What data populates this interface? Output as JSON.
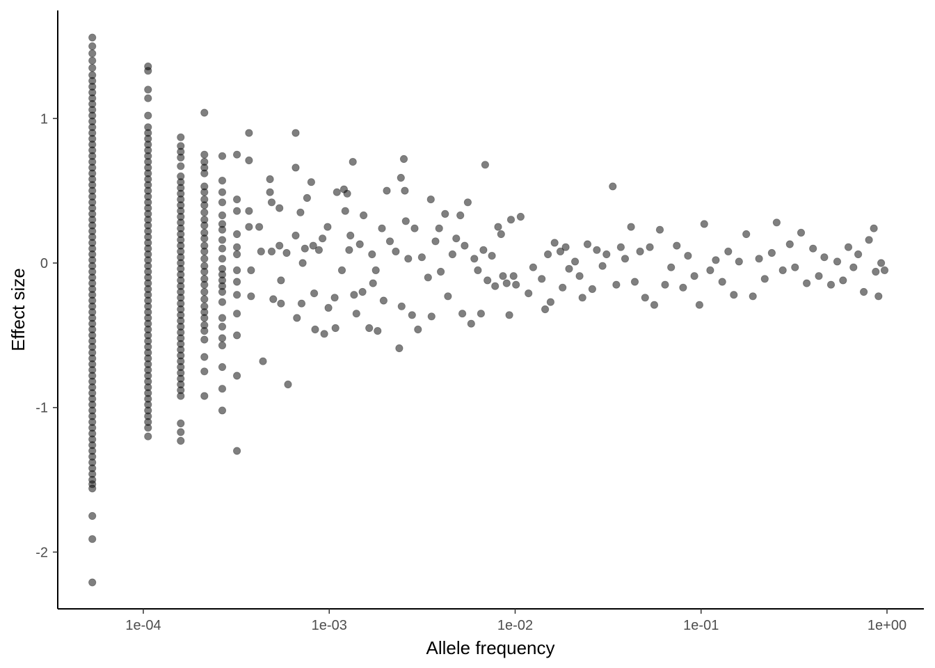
{
  "chart_data": {
    "type": "scatter",
    "title": "",
    "xlabel": "Allele frequency",
    "ylabel": "Effect size",
    "x_scale": "log10",
    "xlim": [
      3.8e-05,
      1.2
    ],
    "ylim": [
      -2.4,
      1.7
    ],
    "x_ticks": [
      {
        "value": 0.0001,
        "label": "1e-04"
      },
      {
        "value": 0.001,
        "label": "1e-03"
      },
      {
        "value": 0.01,
        "label": "1e-02"
      },
      {
        "value": 0.1,
        "label": "1e-01"
      },
      {
        "value": 1,
        "label": "1e+00"
      }
    ],
    "y_ticks": [
      {
        "value": 1,
        "label": "1"
      },
      {
        "value": 0,
        "label": "0"
      },
      {
        "value": -1,
        "label": "-1"
      },
      {
        "value": -2,
        "label": "-2"
      }
    ],
    "grid": false,
    "legend": "none",
    "point_color": "#000000",
    "point_opacity": 0.5,
    "columns": [
      {
        "x": 5.32e-05,
        "y": [
          1.56,
          1.5,
          1.45,
          1.4,
          1.35,
          1.3,
          1.26,
          1.22,
          1.18,
          1.14,
          1.1,
          1.06,
          1.02,
          0.98,
          0.94,
          0.9,
          0.86,
          0.82,
          0.78,
          0.74,
          0.7,
          0.66,
          0.62,
          0.58,
          0.54,
          0.5,
          0.46,
          0.42,
          0.38,
          0.34,
          0.3,
          0.26,
          0.22,
          0.18,
          0.14,
          0.1,
          0.06,
          0.02,
          -0.02,
          -0.06,
          -0.1,
          -0.14,
          -0.18,
          -0.22,
          -0.26,
          -0.3,
          -0.34,
          -0.38,
          -0.42,
          -0.46,
          -0.5,
          -0.54,
          -0.58,
          -0.62,
          -0.66,
          -0.7,
          -0.74,
          -0.78,
          -0.82,
          -0.86,
          -0.9,
          -0.94,
          -0.98,
          -1.02,
          -1.06,
          -1.1,
          -1.14,
          -1.18,
          -1.22,
          -1.26,
          -1.3,
          -1.34,
          -1.38,
          -1.42,
          -1.46,
          -1.5,
          -1.53,
          -1.56,
          -1.75,
          -1.91,
          -2.21
        ]
      },
      {
        "x": 0.000106,
        "y": [
          1.36,
          1.33,
          1.2,
          1.14,
          1.02,
          0.94,
          0.9,
          0.86,
          0.82,
          0.78,
          0.74,
          0.7,
          0.66,
          0.62,
          0.58,
          0.54,
          0.5,
          0.46,
          0.42,
          0.38,
          0.34,
          0.3,
          0.26,
          0.22,
          0.18,
          0.14,
          0.1,
          0.06,
          0.02,
          -0.02,
          -0.06,
          -0.1,
          -0.14,
          -0.18,
          -0.22,
          -0.26,
          -0.3,
          -0.34,
          -0.38,
          -0.42,
          -0.46,
          -0.5,
          -0.54,
          -0.58,
          -0.62,
          -0.66,
          -0.7,
          -0.74,
          -0.78,
          -0.82,
          -0.86,
          -0.9,
          -0.94,
          -0.98,
          -1.02,
          -1.06,
          -1.1,
          -1.14,
          -1.2
        ]
      },
      {
        "x": 0.000159,
        "y": [
          0.87,
          0.81,
          0.77,
          0.73,
          0.67,
          0.6,
          0.56,
          0.52,
          0.48,
          0.44,
          0.4,
          0.36,
          0.32,
          0.28,
          0.24,
          0.2,
          0.16,
          0.12,
          0.08,
          0.04,
          0.0,
          -0.04,
          -0.08,
          -0.12,
          -0.16,
          -0.2,
          -0.24,
          -0.28,
          -0.32,
          -0.36,
          -0.4,
          -0.44,
          -0.48,
          -0.52,
          -0.56,
          -0.6,
          -0.64,
          -0.68,
          -0.72,
          -0.76,
          -0.8,
          -0.84,
          -0.88,
          -0.92,
          -1.11,
          -1.17,
          -1.23
        ]
      },
      {
        "x": 0.000213,
        "y": [
          1.04,
          0.75,
          0.7,
          0.66,
          0.62,
          0.53,
          0.49,
          0.44,
          0.4,
          0.35,
          0.3,
          0.26,
          0.21,
          0.17,
          0.12,
          0.08,
          0.03,
          -0.02,
          -0.06,
          -0.11,
          -0.15,
          -0.2,
          -0.25,
          -0.3,
          -0.34,
          -0.38,
          -0.43,
          -0.47,
          -0.53,
          -0.65,
          -0.75,
          -0.92
        ]
      },
      {
        "x": 0.000266,
        "y": [
          0.74,
          0.57,
          0.49,
          0.42,
          0.33,
          0.27,
          0.23,
          0.16,
          0.1,
          0.03,
          -0.04,
          -0.08,
          -0.12,
          -0.16,
          -0.2,
          -0.27,
          -0.38,
          -0.44,
          -0.52,
          -0.57,
          -0.72,
          -0.87,
          -1.02
        ]
      },
      {
        "x": 0.000319,
        "y": [
          0.75,
          0.44,
          0.36,
          0.2,
          0.11,
          0.06,
          -0.05,
          -0.13,
          -0.22,
          -0.35,
          -0.5,
          -0.78,
          -1.3
        ]
      }
    ],
    "points": [
      {
        "x": 0.00037,
        "y": 0.9
      },
      {
        "x": 0.00037,
        "y": 0.71
      },
      {
        "x": 0.00037,
        "y": 0.36
      },
      {
        "x": 0.00037,
        "y": 0.25
      },
      {
        "x": 0.00038,
        "y": -0.05
      },
      {
        "x": 0.00038,
        "y": -0.23
      },
      {
        "x": 0.00042,
        "y": 0.25
      },
      {
        "x": 0.00043,
        "y": 0.08
      },
      {
        "x": 0.00044,
        "y": -0.68
      },
      {
        "x": 0.00048,
        "y": 0.58
      },
      {
        "x": 0.00048,
        "y": 0.49
      },
      {
        "x": 0.00049,
        "y": 0.42
      },
      {
        "x": 0.00049,
        "y": 0.08
      },
      {
        "x": 0.0005,
        "y": -0.25
      },
      {
        "x": 0.00054,
        "y": 0.38
      },
      {
        "x": 0.00054,
        "y": 0.12
      },
      {
        "x": 0.00055,
        "y": -0.12
      },
      {
        "x": 0.00055,
        "y": -0.28
      },
      {
        "x": 0.00059,
        "y": 0.07
      },
      {
        "x": 0.0006,
        "y": -0.84
      },
      {
        "x": 0.00066,
        "y": 0.9
      },
      {
        "x": 0.00066,
        "y": 0.66
      },
      {
        "x": 0.00066,
        "y": 0.19
      },
      {
        "x": 0.00067,
        "y": -0.38
      },
      {
        "x": 0.0007,
        "y": 0.35
      },
      {
        "x": 0.00071,
        "y": -0.28
      },
      {
        "x": 0.00072,
        "y": 0.0
      },
      {
        "x": 0.00074,
        "y": 0.1
      },
      {
        "x": 0.00076,
        "y": 0.45
      },
      {
        "x": 0.0008,
        "y": 0.56
      },
      {
        "x": 0.00082,
        "y": 0.12
      },
      {
        "x": 0.00083,
        "y": -0.21
      },
      {
        "x": 0.00084,
        "y": -0.46
      },
      {
        "x": 0.00088,
        "y": 0.09
      },
      {
        "x": 0.00092,
        "y": 0.17
      },
      {
        "x": 0.00094,
        "y": -0.49
      },
      {
        "x": 0.00098,
        "y": 0.25
      },
      {
        "x": 0.00099,
        "y": -0.31
      },
      {
        "x": 0.00107,
        "y": -0.24
      },
      {
        "x": 0.00108,
        "y": -0.45
      },
      {
        "x": 0.0011,
        "y": 0.49
      },
      {
        "x": 0.00117,
        "y": -0.05
      },
      {
        "x": 0.0012,
        "y": 0.51
      },
      {
        "x": 0.00122,
        "y": 0.36
      },
      {
        "x": 0.00125,
        "y": 0.48
      },
      {
        "x": 0.00128,
        "y": 0.09
      },
      {
        "x": 0.0013,
        "y": 0.19
      },
      {
        "x": 0.00134,
        "y": 0.7
      },
      {
        "x": 0.00136,
        "y": -0.22
      },
      {
        "x": 0.0014,
        "y": -0.35
      },
      {
        "x": 0.00146,
        "y": 0.13
      },
      {
        "x": 0.00151,
        "y": -0.2
      },
      {
        "x": 0.00153,
        "y": 0.33
      },
      {
        "x": 0.00164,
        "y": -0.45
      },
      {
        "x": 0.0017,
        "y": 0.06
      },
      {
        "x": 0.00172,
        "y": -0.14
      },
      {
        "x": 0.00178,
        "y": -0.05
      },
      {
        "x": 0.00182,
        "y": -0.47
      },
      {
        "x": 0.00192,
        "y": 0.24
      },
      {
        "x": 0.00196,
        "y": -0.26
      },
      {
        "x": 0.00204,
        "y": 0.5
      },
      {
        "x": 0.00212,
        "y": 0.15
      },
      {
        "x": 0.00228,
        "y": 0.08
      },
      {
        "x": 0.00238,
        "y": -0.59
      },
      {
        "x": 0.00243,
        "y": 0.59
      },
      {
        "x": 0.00245,
        "y": -0.3
      },
      {
        "x": 0.00252,
        "y": 0.72
      },
      {
        "x": 0.00255,
        "y": 0.5
      },
      {
        "x": 0.00258,
        "y": 0.29
      },
      {
        "x": 0.00266,
        "y": 0.03
      },
      {
        "x": 0.00279,
        "y": -0.36
      },
      {
        "x": 0.00288,
        "y": 0.24
      },
      {
        "x": 0.003,
        "y": -0.46
      },
      {
        "x": 0.00315,
        "y": 0.04
      },
      {
        "x": 0.0034,
        "y": -0.1
      },
      {
        "x": 0.00352,
        "y": 0.44
      },
      {
        "x": 0.00355,
        "y": -0.37
      },
      {
        "x": 0.00373,
        "y": 0.15
      },
      {
        "x": 0.0039,
        "y": 0.24
      },
      {
        "x": 0.00398,
        "y": -0.06
      },
      {
        "x": 0.0042,
        "y": 0.34
      },
      {
        "x": 0.00435,
        "y": -0.23
      },
      {
        "x": 0.0046,
        "y": 0.06
      },
      {
        "x": 0.00482,
        "y": 0.17
      },
      {
        "x": 0.00507,
        "y": 0.33
      },
      {
        "x": 0.0052,
        "y": -0.35
      },
      {
        "x": 0.00535,
        "y": 0.12
      },
      {
        "x": 0.00556,
        "y": 0.42
      },
      {
        "x": 0.0058,
        "y": -0.42
      },
      {
        "x": 0.00603,
        "y": 0.03
      },
      {
        "x": 0.0063,
        "y": -0.05
      },
      {
        "x": 0.00655,
        "y": -0.35
      },
      {
        "x": 0.00675,
        "y": 0.09
      },
      {
        "x": 0.0069,
        "y": 0.68
      },
      {
        "x": 0.0071,
        "y": -0.12
      },
      {
        "x": 0.0075,
        "y": 0.05
      },
      {
        "x": 0.0078,
        "y": -0.16
      },
      {
        "x": 0.0081,
        "y": 0.25
      },
      {
        "x": 0.0084,
        "y": 0.2
      },
      {
        "x": 0.0086,
        "y": -0.09
      },
      {
        "x": 0.009,
        "y": -0.14
      },
      {
        "x": 0.0093,
        "y": -0.36
      },
      {
        "x": 0.0095,
        "y": 0.3
      },
      {
        "x": 0.0098,
        "y": -0.09
      },
      {
        "x": 0.0101,
        "y": -0.15
      },
      {
        "x": 0.0107,
        "y": 0.32
      },
      {
        "x": 0.0118,
        "y": -0.21
      },
      {
        "x": 0.0125,
        "y": -0.03
      },
      {
        "x": 0.0139,
        "y": -0.11
      },
      {
        "x": 0.0145,
        "y": -0.32
      },
      {
        "x": 0.015,
        "y": 0.06
      },
      {
        "x": 0.0155,
        "y": -0.27
      },
      {
        "x": 0.0163,
        "y": 0.14
      },
      {
        "x": 0.0175,
        "y": 0.08
      },
      {
        "x": 0.018,
        "y": -0.17
      },
      {
        "x": 0.0187,
        "y": 0.11
      },
      {
        "x": 0.0195,
        "y": -0.04
      },
      {
        "x": 0.021,
        "y": 0.01
      },
      {
        "x": 0.0222,
        "y": -0.09
      },
      {
        "x": 0.023,
        "y": -0.24
      },
      {
        "x": 0.0245,
        "y": 0.13
      },
      {
        "x": 0.026,
        "y": -0.18
      },
      {
        "x": 0.0275,
        "y": 0.09
      },
      {
        "x": 0.0295,
        "y": -0.02
      },
      {
        "x": 0.031,
        "y": 0.06
      },
      {
        "x": 0.0335,
        "y": 0.53
      },
      {
        "x": 0.035,
        "y": -0.15
      },
      {
        "x": 0.037,
        "y": 0.11
      },
      {
        "x": 0.039,
        "y": 0.03
      },
      {
        "x": 0.042,
        "y": 0.25
      },
      {
        "x": 0.044,
        "y": -0.13
      },
      {
        "x": 0.047,
        "y": 0.08
      },
      {
        "x": 0.05,
        "y": -0.24
      },
      {
        "x": 0.053,
        "y": 0.11
      },
      {
        "x": 0.056,
        "y": -0.29
      },
      {
        "x": 0.06,
        "y": 0.23
      },
      {
        "x": 0.064,
        "y": -0.15
      },
      {
        "x": 0.069,
        "y": -0.03
      },
      {
        "x": 0.074,
        "y": 0.12
      },
      {
        "x": 0.08,
        "y": -0.17
      },
      {
        "x": 0.085,
        "y": 0.05
      },
      {
        "x": 0.092,
        "y": -0.09
      },
      {
        "x": 0.098,
        "y": -0.29
      },
      {
        "x": 0.104,
        "y": 0.27
      },
      {
        "x": 0.112,
        "y": -0.05
      },
      {
        "x": 0.12,
        "y": 0.02
      },
      {
        "x": 0.13,
        "y": -0.13
      },
      {
        "x": 0.14,
        "y": 0.08
      },
      {
        "x": 0.15,
        "y": -0.22
      },
      {
        "x": 0.16,
        "y": 0.01
      },
      {
        "x": 0.175,
        "y": 0.2
      },
      {
        "x": 0.19,
        "y": -0.23
      },
      {
        "x": 0.205,
        "y": 0.03
      },
      {
        "x": 0.22,
        "y": -0.11
      },
      {
        "x": 0.24,
        "y": 0.07
      },
      {
        "x": 0.255,
        "y": 0.28
      },
      {
        "x": 0.275,
        "y": -0.05
      },
      {
        "x": 0.3,
        "y": 0.13
      },
      {
        "x": 0.32,
        "y": -0.03
      },
      {
        "x": 0.345,
        "y": 0.21
      },
      {
        "x": 0.37,
        "y": -0.14
      },
      {
        "x": 0.4,
        "y": 0.1
      },
      {
        "x": 0.43,
        "y": -0.09
      },
      {
        "x": 0.46,
        "y": 0.04
      },
      {
        "x": 0.5,
        "y": -0.15
      },
      {
        "x": 0.54,
        "y": 0.01
      },
      {
        "x": 0.58,
        "y": -0.12
      },
      {
        "x": 0.62,
        "y": 0.11
      },
      {
        "x": 0.66,
        "y": -0.03
      },
      {
        "x": 0.7,
        "y": 0.06
      },
      {
        "x": 0.75,
        "y": -0.2
      },
      {
        "x": 0.8,
        "y": 0.16
      },
      {
        "x": 0.85,
        "y": 0.24
      },
      {
        "x": 0.87,
        "y": -0.06
      },
      {
        "x": 0.9,
        "y": -0.23
      },
      {
        "x": 0.93,
        "y": 0.0
      },
      {
        "x": 0.97,
        "y": -0.05
      }
    ]
  }
}
